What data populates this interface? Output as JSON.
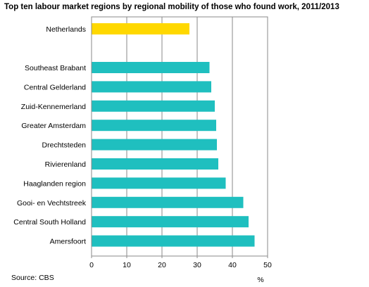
{
  "chart_data": {
    "type": "bar",
    "orientation": "horizontal",
    "title": "Top ten labour market regions by regional mobility of those who found work, 2011/2013",
    "xlabel": "%",
    "ylabel": "",
    "xlim": [
      0,
      50
    ],
    "xticks": [
      "0",
      "10",
      "20",
      "30",
      "40",
      "50"
    ],
    "grid": true,
    "categories": [
      "Netherlands",
      "Southeast Brabant",
      "Central Gelderland",
      "Zuid-Kennemerland",
      "Greater Amsterdam",
      "Drechtsteden",
      "Rivierenland",
      "Haaglanden region",
      "Gooi- en Vechtstreek",
      "Central South Holland",
      "Amersfoort"
    ],
    "values": [
      27.8,
      33.5,
      34.0,
      35.0,
      35.4,
      35.6,
      36.0,
      38.1,
      43.1,
      44.6,
      46.3
    ],
    "bar_colors": [
      "#ffd800",
      "#1fbfbf",
      "#1fbfbf",
      "#1fbfbf",
      "#1fbfbf",
      "#1fbfbf",
      "#1fbfbf",
      "#1fbfbf",
      "#1fbfbf",
      "#1fbfbf",
      "#1fbfbf"
    ],
    "source": "Source: CBS"
  }
}
